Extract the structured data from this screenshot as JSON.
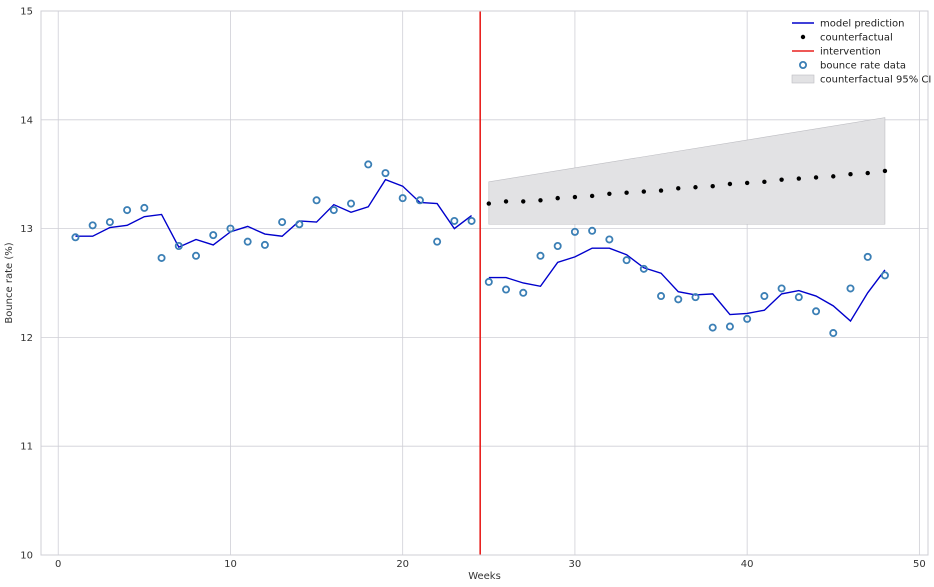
{
  "chart_data": {
    "type": "line",
    "xlabel": "Weeks",
    "ylabel": "Bounce rate (%)",
    "xlim": [
      -1,
      50.5
    ],
    "ylim": [
      10,
      15
    ],
    "x_ticks": [
      0,
      10,
      20,
      30,
      40,
      50
    ],
    "y_ticks": [
      10,
      11,
      12,
      13,
      14,
      15
    ],
    "grid": true,
    "legend_position": "top-right",
    "colors": {
      "prediction": "#0000cc",
      "counterfactual": "#000000",
      "intervention": "#e8211f",
      "data_edge": "#3b7fb5",
      "ci_fill": "#e2e2e4",
      "grid": "#cfcfd6"
    },
    "series": [
      {
        "name": "model prediction",
        "kind": "line",
        "x": [
          1,
          2,
          3,
          4,
          5,
          6,
          7,
          8,
          9,
          10,
          11,
          12,
          13,
          14,
          15,
          16,
          17,
          18,
          19,
          20,
          21,
          22,
          23,
          24,
          25,
          26,
          27,
          28,
          29,
          30,
          31,
          32,
          33,
          34,
          35,
          36,
          37,
          38,
          39,
          40,
          41,
          42,
          43,
          44,
          45,
          46,
          47,
          48
        ],
        "y": [
          12.93,
          12.93,
          13.01,
          13.03,
          13.11,
          13.13,
          12.83,
          12.9,
          12.85,
          12.97,
          13.02,
          12.95,
          12.93,
          13.07,
          13.06,
          13.22,
          13.15,
          13.2,
          13.45,
          13.39,
          13.24,
          13.23,
          13.0,
          13.12,
          12.55,
          12.55,
          12.5,
          12.47,
          12.69,
          12.74,
          12.82,
          12.82,
          12.76,
          12.64,
          12.59,
          12.42,
          12.39,
          12.4,
          12.21,
          12.22,
          12.25,
          12.4,
          12.43,
          12.38,
          12.29,
          12.15,
          12.41,
          12.62
        ]
      },
      {
        "name": "counterfactual",
        "kind": "points",
        "x": [
          25,
          26,
          27,
          28,
          29,
          30,
          31,
          32,
          33,
          34,
          35,
          36,
          37,
          38,
          39,
          40,
          41,
          42,
          43,
          44,
          45,
          46,
          47,
          48
        ],
        "y": [
          13.23,
          13.25,
          13.25,
          13.26,
          13.28,
          13.29,
          13.3,
          13.32,
          13.33,
          13.34,
          13.35,
          13.37,
          13.38,
          13.39,
          13.41,
          13.42,
          13.43,
          13.45,
          13.46,
          13.47,
          13.48,
          13.5,
          13.51,
          13.53
        ]
      },
      {
        "name": "intervention",
        "kind": "vline",
        "x": 24.5
      },
      {
        "name": "bounce rate data",
        "kind": "hollow-markers",
        "x": [
          1,
          2,
          3,
          4,
          5,
          6,
          7,
          8,
          9,
          10,
          11,
          12,
          13,
          14,
          15,
          16,
          17,
          18,
          19,
          20,
          21,
          22,
          23,
          24,
          25,
          26,
          27,
          28,
          29,
          30,
          31,
          32,
          33,
          34,
          35,
          36,
          37,
          38,
          39,
          40,
          41,
          42,
          43,
          44,
          45,
          46,
          47,
          48
        ],
        "y": [
          12.92,
          13.03,
          13.06,
          13.17,
          13.19,
          12.73,
          12.84,
          12.75,
          12.94,
          13.0,
          12.88,
          12.85,
          13.06,
          13.04,
          13.26,
          13.17,
          13.23,
          13.59,
          13.51,
          13.28,
          13.26,
          12.88,
          13.07,
          13.07,
          12.51,
          12.44,
          12.41,
          12.75,
          12.84,
          12.97,
          12.98,
          12.9,
          12.71,
          12.63,
          12.38,
          12.35,
          12.37,
          12.09,
          12.1,
          12.17,
          12.38,
          12.45,
          12.37,
          12.24,
          12.04,
          12.45,
          12.74,
          12.57
        ]
      },
      {
        "name": "counterfactual 95% CI",
        "kind": "band",
        "x": [
          25,
          48
        ],
        "lower": [
          13.04,
          13.04
        ],
        "upper": [
          13.43,
          14.02
        ]
      }
    ]
  }
}
